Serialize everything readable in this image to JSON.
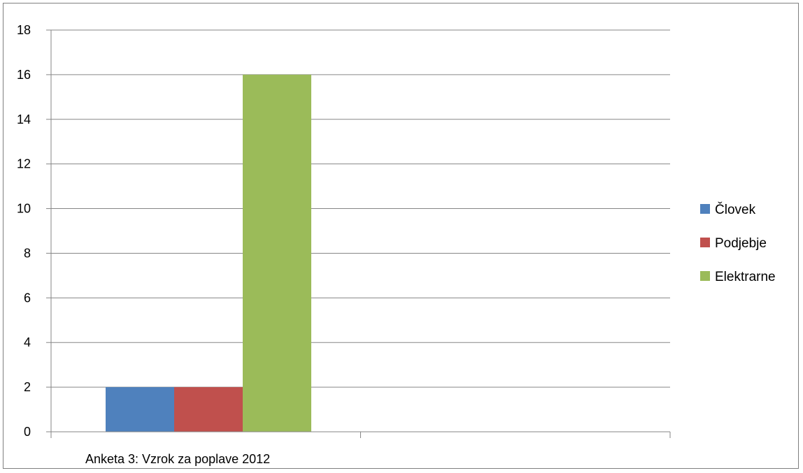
{
  "chart_data": {
    "type": "bar",
    "title": "",
    "xlabel": "",
    "ylabel": "",
    "categories": [
      "Anketa 3: Vzrok za poplave 2012",
      ""
    ],
    "series": [
      {
        "name": "Človek",
        "values": [
          2,
          null
        ],
        "color": "#4F81BD"
      },
      {
        "name": "Podjebje",
        "values": [
          2,
          null
        ],
        "color": "#C0504D"
      },
      {
        "name": "Elektrarne",
        "values": [
          16,
          null
        ],
        "color": "#9BBB59"
      }
    ],
    "ylim": [
      0,
      18
    ],
    "yticks": [
      0,
      2,
      4,
      6,
      8,
      10,
      12,
      14,
      16,
      18
    ],
    "grid": true,
    "legend_position": "right",
    "colors": {
      "axis": "#868686",
      "grid": "#868686",
      "frame": "#7f7f7f"
    }
  }
}
